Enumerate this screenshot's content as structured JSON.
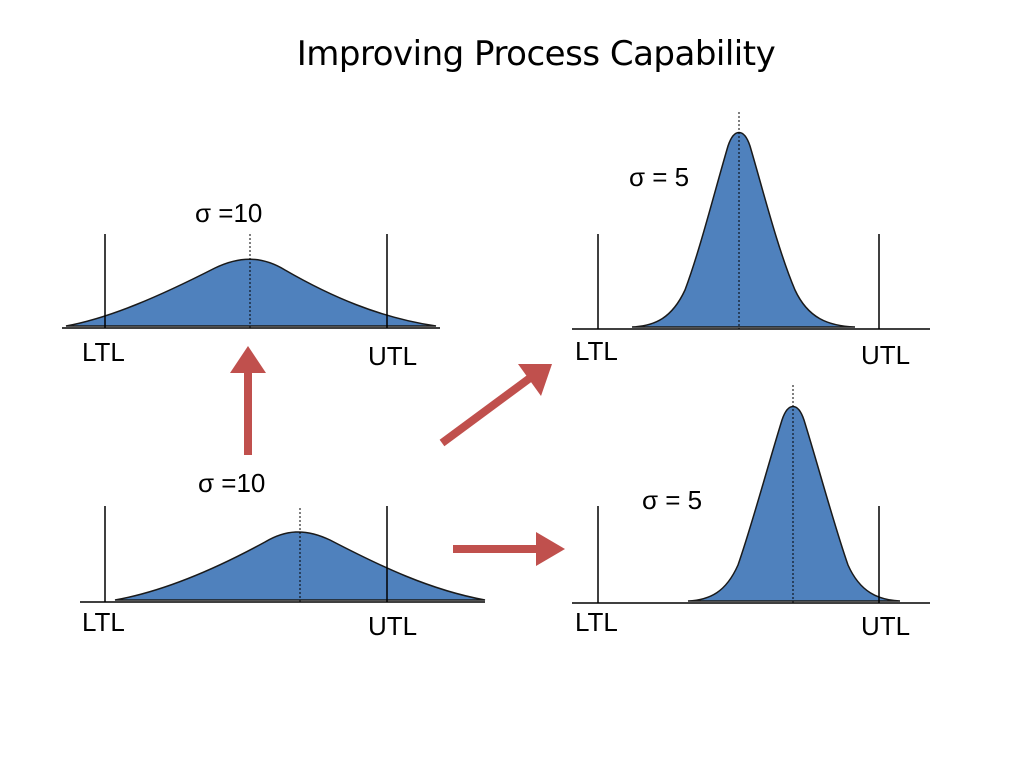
{
  "title": "Improving Process Capability",
  "colors": {
    "curve_fill": "#4F81BD",
    "curve_stroke": "#1a1a1a",
    "arrow": "#C0504D"
  },
  "panels": {
    "top_left": {
      "sigma": "σ =10",
      "ltl": "LTL",
      "utl": "UTL"
    },
    "bottom_left": {
      "sigma": "σ =10",
      "ltl": "LTL",
      "utl": "UTL"
    },
    "top_right": {
      "sigma": "σ = 5",
      "ltl": "LTL",
      "utl": "UTL"
    },
    "bottom_right": {
      "sigma": "σ = 5",
      "ltl": "LTL",
      "utl": "UTL"
    }
  }
}
